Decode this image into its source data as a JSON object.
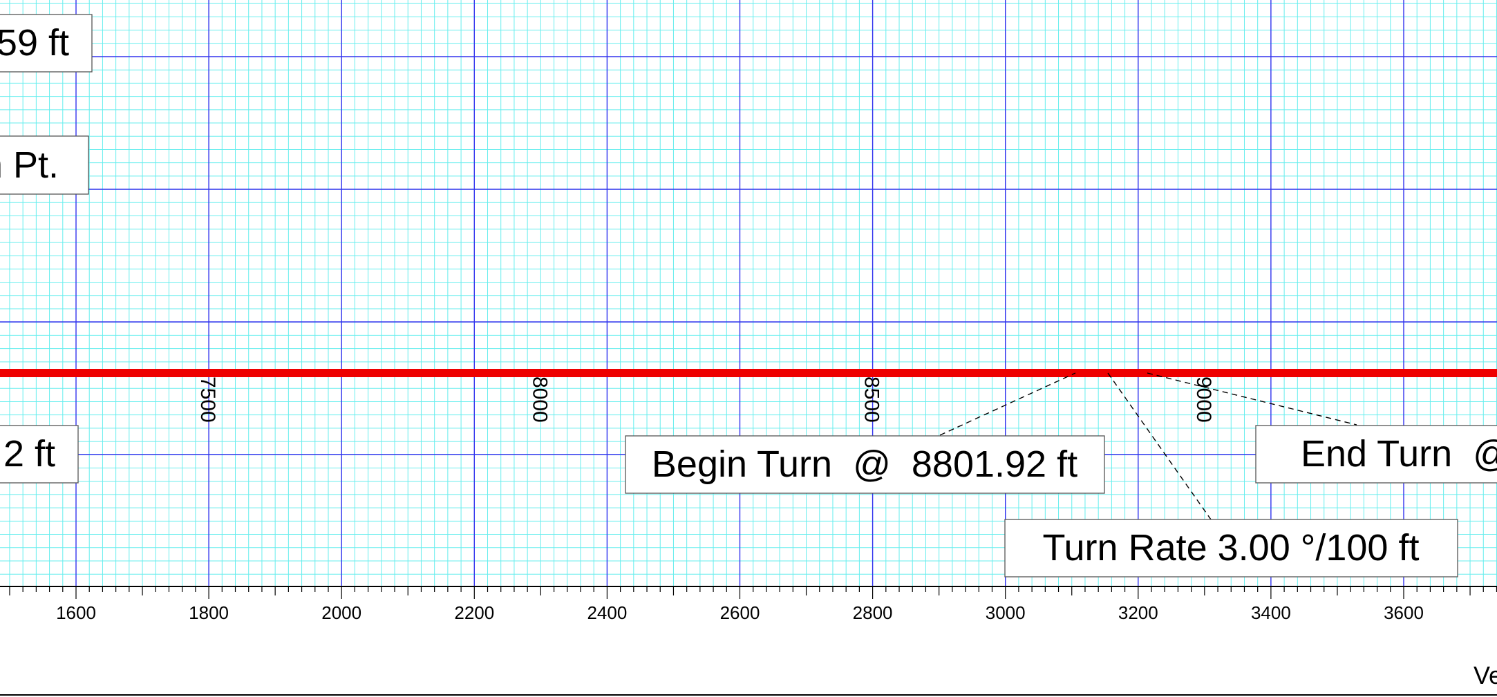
{
  "chart_data": {
    "type": "line",
    "x_unit": "ft",
    "xlim": [
      1485,
      3742
    ],
    "x_ticks": [
      1600,
      1800,
      2000,
      2200,
      2400,
      2600,
      2800,
      3000,
      3200,
      3400,
      3600
    ],
    "x_axis_title_fragment": "Ve",
    "grid": true,
    "grid_colors": {
      "major": "#3333ee",
      "minor": "#66eeee"
    },
    "series": [
      {
        "color": "#ee0000",
        "style": "thick horizontal wellbore path",
        "x": [
          1485,
          3742
        ]
      }
    ],
    "md_labels": [
      {
        "text": "7500",
        "x": 1800
      },
      {
        "text": "8000",
        "x": 2300
      },
      {
        "text": "8500",
        "x": 2800
      },
      {
        "text": "9000",
        "x": 3300
      }
    ],
    "annotations": {
      "left_top": "59 ft",
      "left_middle": "n Pt.",
      "left_bottom": "2 ft",
      "begin_turn": "Begin Turn  @  8801.92 ft",
      "turn_rate": "Turn Rate 3.00 °/100 ft",
      "end_turn": "End Turn  @"
    }
  }
}
